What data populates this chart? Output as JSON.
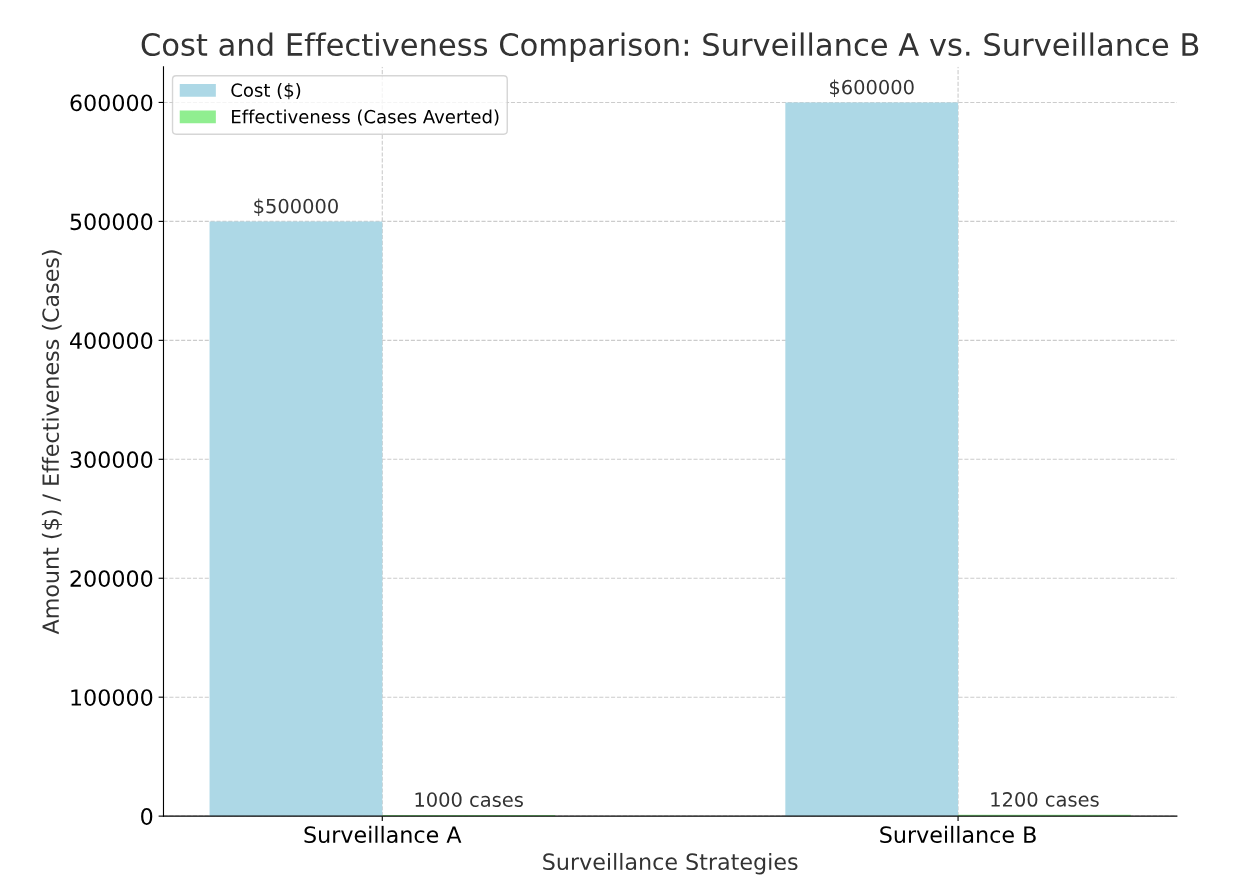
{
  "chart_data": {
    "type": "bar",
    "title": "Cost and Effectiveness Comparison: Surveillance A vs. Surveillance B",
    "xlabel": "Surveillance Strategies",
    "ylabel": "Amount ($) / Effectiveness (Cases)",
    "categories": [
      "Surveillance A",
      "Surveillance B"
    ],
    "series": [
      {
        "name": "Cost ($)",
        "color": "#add8e6",
        "values": [
          500000,
          600000
        ],
        "value_labels": [
          "$500000",
          "$600000"
        ]
      },
      {
        "name": "Effectiveness (Cases Averted)",
        "color": "#90ee90",
        "values": [
          1000,
          1200
        ],
        "value_labels": [
          "1000 cases",
          "1200 cases"
        ]
      }
    ],
    "ylim": [
      0,
      630000
    ],
    "yticks": [
      0,
      100000,
      200000,
      300000,
      400000,
      500000,
      600000
    ],
    "grid": true,
    "legend": "top left"
  }
}
